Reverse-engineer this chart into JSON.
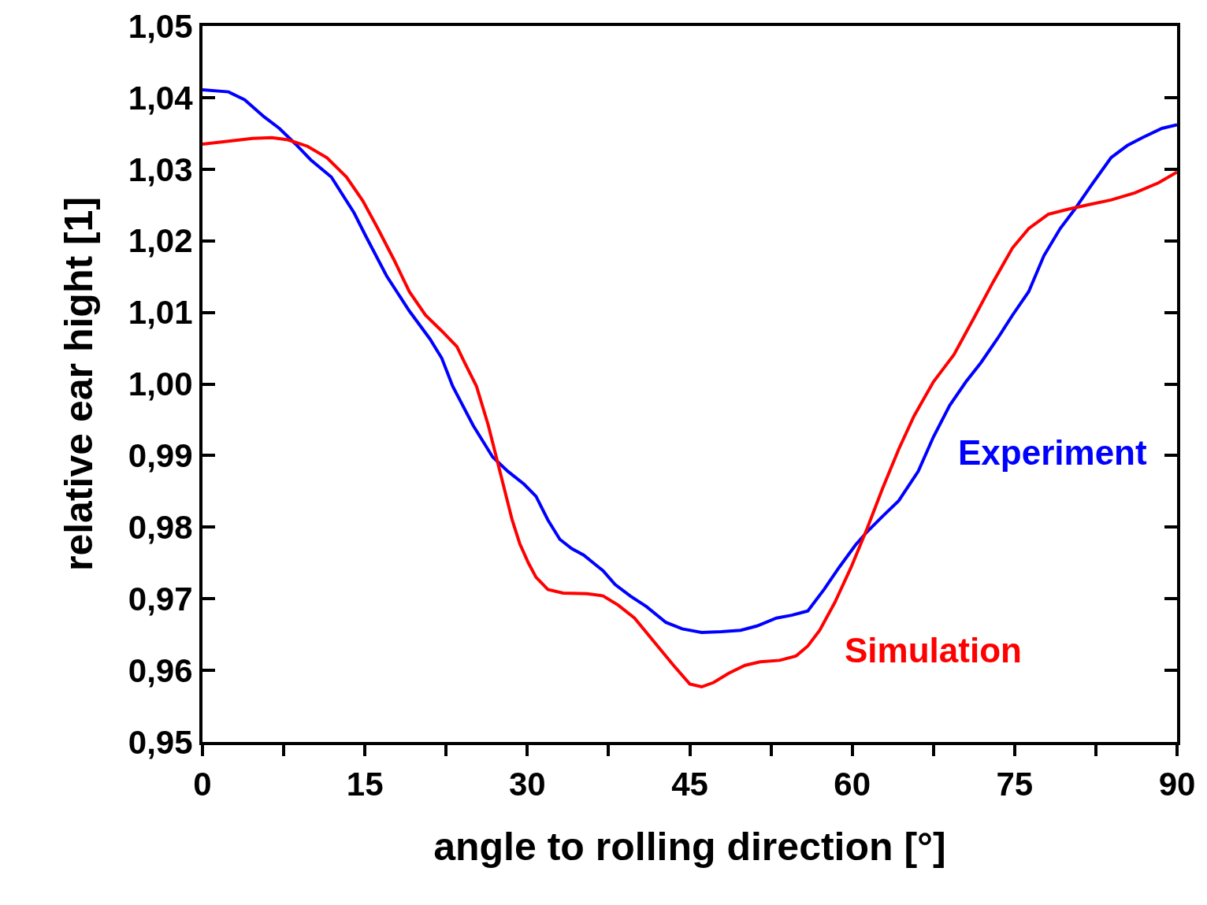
{
  "chart_data": {
    "type": "line",
    "xlabel": "angle to rolling direction [°]",
    "ylabel": "relative ear hight [1]",
    "xlim": [
      0,
      90
    ],
    "xticks": [
      0,
      {
        "value": 7.5,
        "label": null
      },
      15,
      {
        "value": 22.5,
        "label": null
      },
      30,
      {
        "value": 37.5,
        "label": null
      },
      45,
      {
        "value": 52.5,
        "label": null
      },
      60,
      {
        "value": 67.5,
        "label": null
      },
      75,
      {
        "value": 82.5,
        "label": null
      },
      90
    ],
    "ylim": [
      0.95,
      1.05
    ],
    "yticks": [
      {
        "value": 0.95,
        "label": "0,95"
      },
      {
        "value": 0.96,
        "label": "0,96"
      },
      {
        "value": 0.97,
        "label": "0,97"
      },
      {
        "value": 0.98,
        "label": "0,98"
      },
      {
        "value": 0.99,
        "label": "0,99"
      },
      {
        "value": 1.0,
        "label": "1,00"
      },
      {
        "value": 1.01,
        "label": "1,01"
      },
      {
        "value": 1.02,
        "label": "1,02"
      },
      {
        "value": 1.03,
        "label": "1,03"
      },
      {
        "value": 1.04,
        "label": "1,04"
      },
      {
        "value": 1.05,
        "label": "1,05"
      }
    ],
    "grid": false,
    "legend": false,
    "marker": "none",
    "line_style": "solid",
    "series": [
      {
        "name": "Experiment",
        "color": "#0000ff",
        "x": [
          0,
          2.4,
          3.9,
          5.7,
          7.1,
          8.6,
          10.0,
          11.9,
          14.0,
          15.1,
          17.0,
          19.1,
          21.0,
          22.1,
          23.1,
          25.0,
          26.8,
          28.2,
          29.7,
          30.8,
          31.9,
          33.0,
          34.1,
          35.2,
          37.0,
          38.1,
          39.5,
          41.0,
          42.8,
          44.3,
          46.1,
          47.9,
          49.7,
          51.2,
          53.0,
          54.4,
          55.9,
          57.4,
          58.8,
          60.3,
          61.4,
          62.8,
          64.3,
          66.1,
          67.5,
          69.0,
          70.5,
          71.9,
          73.4,
          74.8,
          76.3,
          77.7,
          79.2,
          80.6,
          82.1,
          83.9,
          85.4,
          86.8,
          88.6,
          90
        ],
        "values": [
          1.0411,
          1.0408,
          1.0397,
          1.0373,
          1.0357,
          1.0335,
          1.0313,
          1.0289,
          1.0239,
          1.0206,
          1.0151,
          1.0102,
          1.0063,
          1.0036,
          0.9997,
          0.9942,
          0.9898,
          0.9878,
          0.986,
          0.9843,
          0.981,
          0.9783,
          0.977,
          0.9761,
          0.9739,
          0.972,
          0.9704,
          0.9689,
          0.9667,
          0.9658,
          0.9653,
          0.9654,
          0.9656,
          0.9662,
          0.9673,
          0.9677,
          0.9683,
          0.9713,
          0.9744,
          0.9775,
          0.9794,
          0.9815,
          0.9837,
          0.9878,
          0.9926,
          0.997,
          1.0003,
          1.003,
          1.0063,
          1.0096,
          1.0129,
          1.0179,
          1.0217,
          1.0245,
          1.0278,
          1.0316,
          1.0333,
          1.0344,
          1.0357,
          1.0362
        ]
      },
      {
        "name": "Simulation",
        "color": "#ff0000",
        "x": [
          0,
          2.4,
          4.6,
          6.4,
          7.9,
          9.7,
          11.5,
          13.3,
          14.8,
          16.2,
          17.7,
          19.1,
          20.6,
          22.1,
          23.5,
          24.2,
          25.3,
          26.4,
          27.5,
          28.6,
          29.3,
          30.1,
          30.8,
          31.9,
          33.3,
          35.5,
          37.0,
          38.4,
          39.9,
          41.7,
          43.5,
          45.0,
          46.1,
          47.2,
          48.6,
          50.1,
          51.5,
          53.3,
          54.8,
          55.9,
          57.0,
          58.4,
          59.9,
          61.4,
          62.8,
          64.3,
          65.7,
          67.5,
          69.4,
          71.2,
          73.0,
          74.8,
          76.3,
          78.1,
          79.9,
          81.7,
          83.9,
          86.1,
          88.3,
          90
        ],
        "values": [
          1.0335,
          1.0339,
          1.0343,
          1.0344,
          1.0341,
          1.0332,
          1.0316,
          1.0289,
          1.0256,
          1.0217,
          1.0173,
          1.0129,
          1.0096,
          1.0074,
          1.0052,
          1.003,
          0.9997,
          0.9942,
          0.9876,
          0.981,
          0.9777,
          0.975,
          0.973,
          0.9713,
          0.9708,
          0.9707,
          0.9704,
          0.9691,
          0.9673,
          0.964,
          0.9607,
          0.9581,
          0.9577,
          0.9583,
          0.9596,
          0.9607,
          0.9612,
          0.9614,
          0.962,
          0.9634,
          0.9656,
          0.9695,
          0.9744,
          0.9799,
          0.9854,
          0.9909,
          0.9955,
          1.0003,
          1.0041,
          1.0091,
          1.0142,
          1.019,
          1.0217,
          1.0237,
          1.0244,
          1.025,
          1.0257,
          1.0267,
          1.0281,
          1.0296
        ]
      }
    ]
  }
}
